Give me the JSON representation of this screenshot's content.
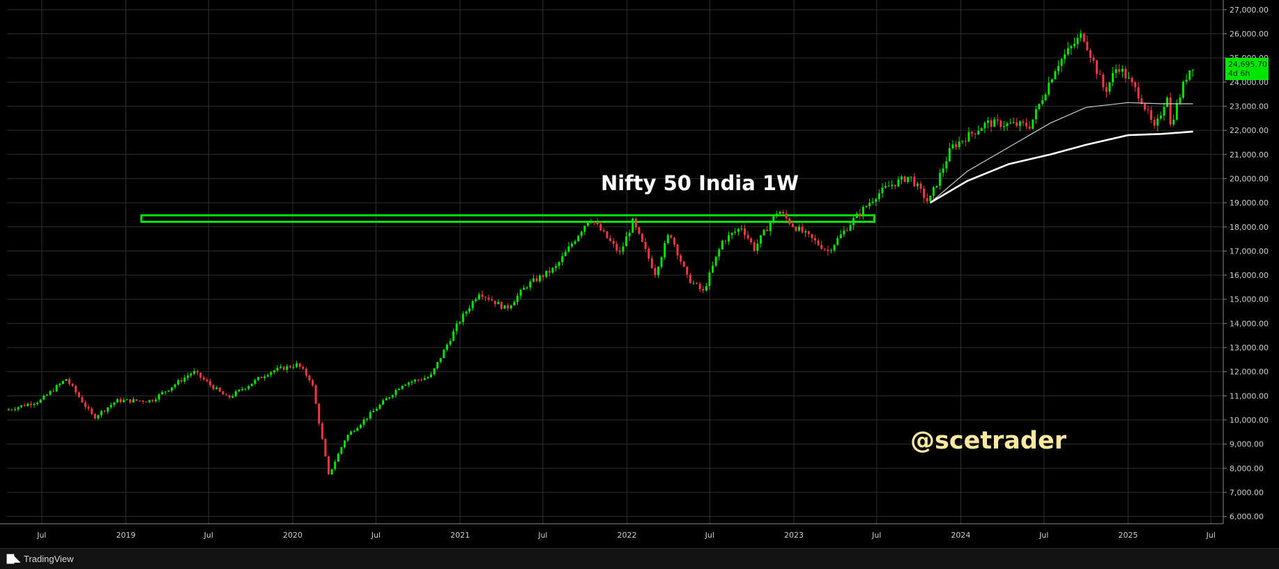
{
  "footer": {
    "brand": "TradingView",
    "logo_icon": "tradingview-logo-icon"
  },
  "price_tag": {
    "value": "24,695.70",
    "countdown": "4d 6h",
    "color": "#00e600"
  },
  "chart_data": {
    "type": "candlestick",
    "title": "Nifty 50 India 1W",
    "watermark": "@scetrader",
    "ylim": [
      6000,
      27000
    ],
    "yticks": [
      6000,
      7000,
      8000,
      9000,
      10000,
      11000,
      12000,
      13000,
      14000,
      15000,
      16000,
      17000,
      18000,
      19000,
      20000,
      21000,
      22000,
      23000,
      24000,
      25000,
      26000,
      27000
    ],
    "ytick_labels": [
      "6,000.00",
      "7,000.00",
      "8,000.00",
      "9,000.00",
      "10,000.00",
      "11,000.00",
      "12,000.00",
      "13,000.00",
      "14,000.00",
      "15,000.00",
      "16,000.00",
      "17,000.00",
      "18,000.00",
      "19,000.00",
      "20,000.00",
      "21,000.00",
      "22,000.00",
      "23,000.00",
      "24,000.00",
      "25,000.00",
      "26,000.00",
      "27,000.00"
    ],
    "xlim": [
      "2018-04-16",
      "2025-07-28"
    ],
    "xticks": [
      {
        "date": "2018-07-01",
        "label": "Jul"
      },
      {
        "date": "2019-01-01",
        "label": "2019"
      },
      {
        "date": "2019-07-01",
        "label": "Jul"
      },
      {
        "date": "2020-01-01",
        "label": "2020"
      },
      {
        "date": "2020-07-01",
        "label": "Jul"
      },
      {
        "date": "2021-01-01",
        "label": "2021"
      },
      {
        "date": "2021-07-01",
        "label": "Jul"
      },
      {
        "date": "2022-01-01",
        "label": "2022"
      },
      {
        "date": "2022-07-01",
        "label": "Jul"
      },
      {
        "date": "2023-01-01",
        "label": "2023"
      },
      {
        "date": "2023-07-01",
        "label": "Jul"
      },
      {
        "date": "2024-01-01",
        "label": "2024"
      },
      {
        "date": "2024-07-01",
        "label": "Jul"
      },
      {
        "date": "2025-01-01",
        "label": "2025"
      },
      {
        "date": "2025-07-01",
        "label": "Jul"
      }
    ],
    "grid": true,
    "up_color": "#00e600",
    "down_color": "#f23645",
    "zone": {
      "from": "2019-02-04",
      "to": "2023-06-26",
      "low": 18210,
      "high": 18480,
      "color": "#00e600"
    },
    "price_path": [
      [
        "2018-04-16",
        10400
      ],
      [
        "2018-07-01",
        10800
      ],
      [
        "2018-08-27",
        11700
      ],
      [
        "2018-10-26",
        10100
      ],
      [
        "2018-12-15",
        10800
      ],
      [
        "2019-03-01",
        10800
      ],
      [
        "2019-06-01",
        12000
      ],
      [
        "2019-08-15",
        10900
      ],
      [
        "2019-11-15",
        12000
      ],
      [
        "2020-01-15",
        12300
      ],
      [
        "2020-02-15",
        11600
      ],
      [
        "2020-03-23",
        7700
      ],
      [
        "2020-04-30",
        9300
      ],
      [
        "2020-07-01",
        10400
      ],
      [
        "2020-09-01",
        11500
      ],
      [
        "2020-11-01",
        11800
      ],
      [
        "2020-12-31",
        14000
      ],
      [
        "2021-02-15",
        15300
      ],
      [
        "2021-04-15",
        14600
      ],
      [
        "2021-06-01",
        15600
      ],
      [
        "2021-08-01",
        16300
      ],
      [
        "2021-10-15",
        18400
      ],
      [
        "2021-12-20",
        16900
      ],
      [
        "2022-01-17",
        18200
      ],
      [
        "2022-03-07",
        16100
      ],
      [
        "2022-04-08",
        17800
      ],
      [
        "2022-05-16",
        15900
      ],
      [
        "2022-06-20",
        15300
      ],
      [
        "2022-08-01",
        17400
      ],
      [
        "2022-09-12",
        18000
      ],
      [
        "2022-10-10",
        17100
      ],
      [
        "2022-12-01",
        18700
      ],
      [
        "2022-12-31",
        18100
      ],
      [
        "2023-03-20",
        17000
      ],
      [
        "2023-05-15",
        18300
      ],
      [
        "2023-07-03",
        19300
      ],
      [
        "2023-08-01",
        19700
      ],
      [
        "2023-09-15",
        20100
      ],
      [
        "2023-10-26",
        19000
      ],
      [
        "2023-12-15",
        21300
      ],
      [
        "2024-03-01",
        22300
      ],
      [
        "2024-06-04",
        22200
      ],
      [
        "2024-08-01",
        24700
      ],
      [
        "2024-09-27",
        26000
      ],
      [
        "2024-11-15",
        23600
      ],
      [
        "2024-12-13",
        24700
      ],
      [
        "2025-01-31",
        23400
      ],
      [
        "2025-03-04",
        22000
      ],
      [
        "2025-03-31",
        23500
      ],
      [
        "2025-04-07",
        22200
      ],
      [
        "2025-05-09",
        24100
      ],
      [
        "2025-05-23",
        24700
      ]
    ],
    "moving_averages": [
      {
        "name": "",
        "color": "#cfcfcf",
        "width": 1.2,
        "points": [
          [
            "2023-10-26",
            19000
          ],
          [
            "2024-01-15",
            20300
          ],
          [
            "2024-04-15",
            21300
          ],
          [
            "2024-07-15",
            22300
          ],
          [
            "2024-10-01",
            22950
          ],
          [
            "2025-01-01",
            23150
          ],
          [
            "2025-03-15",
            23100
          ],
          [
            "2025-05-23",
            23100
          ]
        ]
      },
      {
        "name": "",
        "color": "#ffffff",
        "width": 2.6,
        "points": [
          [
            "2023-10-26",
            19000
          ],
          [
            "2024-01-15",
            19900
          ],
          [
            "2024-04-15",
            20600
          ],
          [
            "2024-07-15",
            21000
          ],
          [
            "2024-10-01",
            21400
          ],
          [
            "2025-01-01",
            21800
          ],
          [
            "2025-03-15",
            21850
          ],
          [
            "2025-05-23",
            21950
          ]
        ]
      }
    ]
  }
}
